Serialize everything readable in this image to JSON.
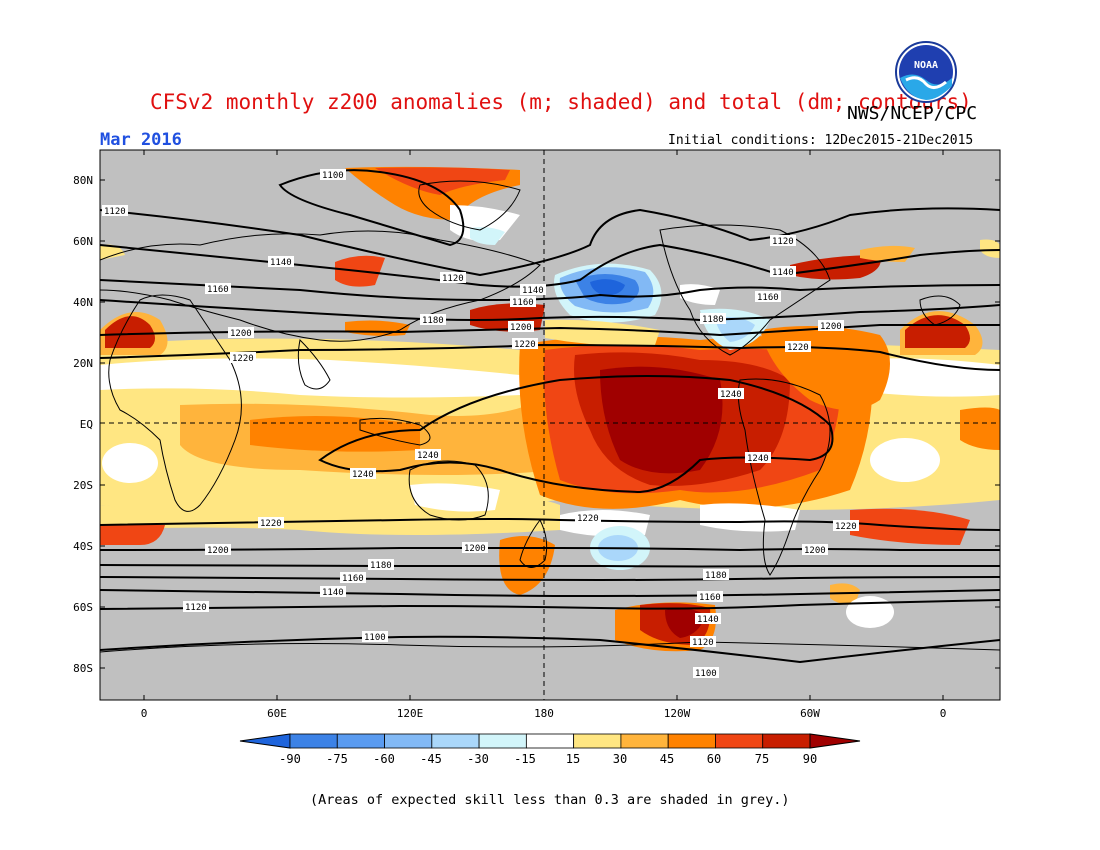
{
  "header": {
    "title": "CFSv2 monthly z200 anomalies (m; shaded) and total (dm; contours)",
    "agency": "NWS/NCEP/CPC",
    "month": "Mar 2016",
    "initial_conditions": "Initial conditions: 12Dec2015-21Dec2015",
    "logo_text": "NOAA"
  },
  "map": {
    "lat_labels": [
      "80N",
      "60N",
      "40N",
      "20N",
      "EQ",
      "20S",
      "40S",
      "60S",
      "80S"
    ],
    "lon_labels": [
      "0",
      "60E",
      "120E",
      "180",
      "120W",
      "60W",
      "0"
    ],
    "background_note": "grey = low skill"
  },
  "contours": {
    "labels": [
      "1100",
      "1120",
      "1140",
      "1160",
      "1180",
      "1200",
      "1220",
      "1240"
    ]
  },
  "colorbar": {
    "labels": [
      "-90",
      "-75",
      "-60",
      "-45",
      "-30",
      "-15",
      "15",
      "30",
      "45",
      "60",
      "75",
      "90"
    ],
    "colors": [
      "#1e64dc",
      "#3c82e6",
      "#5a9bf0",
      "#82b9f5",
      "#aad7fa",
      "#d2f5fa",
      "#ffffff",
      "#ffe682",
      "#ffb43c",
      "#ff8200",
      "#f04614",
      "#c81e00",
      "#a00000"
    ]
  },
  "footer": {
    "note": "(Areas of expected skill less than 0.3 are shaded in grey.)"
  }
}
